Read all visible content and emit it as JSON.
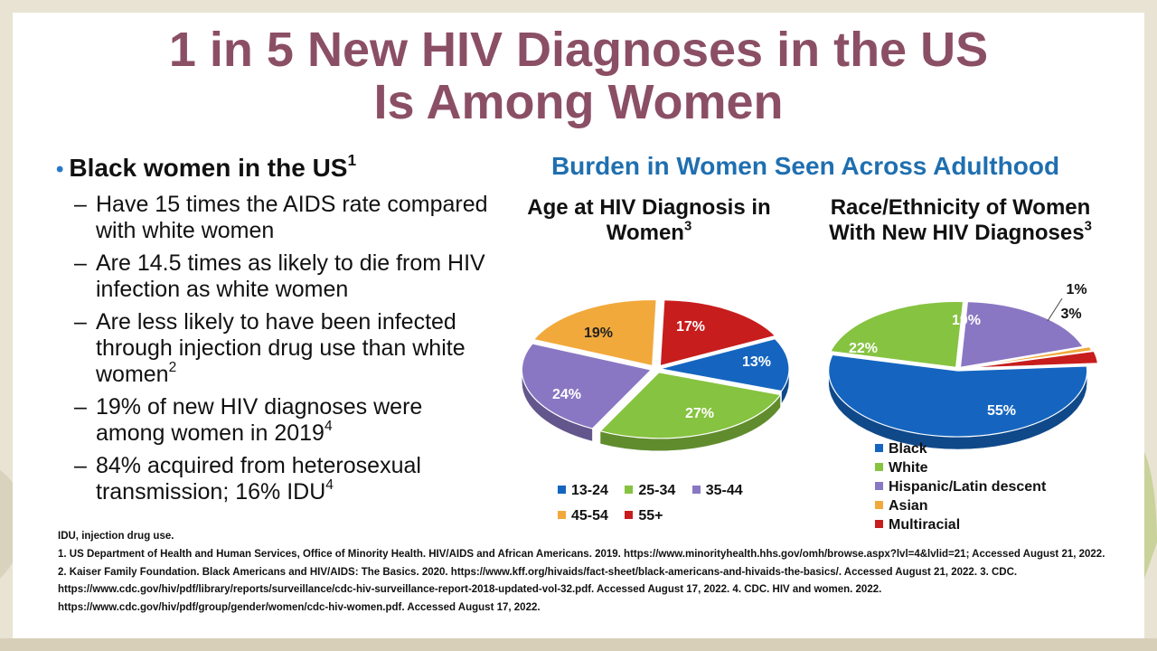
{
  "colors": {
    "title": "#8b4f65",
    "accent": "#1f6fb0",
    "bullet_dot": "#2878c8",
    "background": "#e9e3d4"
  },
  "title": {
    "line1": "1 in 5 New HIV Diagnoses in the US",
    "line2": "Is Among Women"
  },
  "bullets": {
    "main": {
      "text": "Black women in the US",
      "sup": "1"
    },
    "items": [
      {
        "text": "Have 15 times the AIDS rate compared with white women",
        "sup": ""
      },
      {
        "text": "Are 14.5 times as likely to die from HIV infection as white women",
        "sup": ""
      },
      {
        "text": "Are less likely to have been infected through injection drug use than white women",
        "sup": "2"
      },
      {
        "text": "19% of new HIV diagnoses were among women in 2019",
        "sup": "4"
      },
      {
        "text": "84% acquired from heterosexual transmission; 16% IDU",
        "sup": "4"
      }
    ]
  },
  "section_title": "Burden in Women Seen Across Adulthood",
  "chart_data": [
    {
      "type": "pie",
      "title": "Age at HIV Diagnosis in Women",
      "title_sup": "3",
      "categories": [
        "13-24",
        "25-34",
        "35-44",
        "45-54",
        "55+"
      ],
      "values": [
        13,
        27,
        24,
        19,
        17
      ],
      "labels": [
        "13%",
        "27%",
        "24%",
        "19%",
        "17%"
      ],
      "colors": [
        "#1565c0",
        "#86c340",
        "#8a77c3",
        "#f2a93b",
        "#c81d1d"
      ],
      "legend": "bottom"
    },
    {
      "type": "pie",
      "title": "Race/Ethnicity of Women With New HIV Diagnoses",
      "title_sup": "3",
      "categories": [
        "Black",
        "White",
        "Hispanic/Latin descent",
        "Asian",
        "Multiracial"
      ],
      "values": [
        55,
        22,
        19,
        1,
        3
      ],
      "labels": [
        "55%",
        "22%",
        "19%",
        "1%",
        "3%"
      ],
      "colors": [
        "#1565c0",
        "#86c340",
        "#8a77c3",
        "#f2a93b",
        "#c81d1d"
      ],
      "legend": "bottom-right"
    }
  ],
  "footnotes": [
    "IDU, injection drug use.",
    "1. US Department of Health and Human Services, Office of Minority Health. HIV/AIDS and African Americans. 2019. https://www.minorityhealth.hhs.gov/omh/browse.aspx?lvl=4&lvlid=21;  Accessed  August 21, 2022.  2. Kaiser Family Foundation. Black Americans and HIV/AIDS: The Basics. 2020. https://www.kff.org/hivaids/fact-sheet/black-americans-and-hivaids-the-basics/.  Accessed  August 21, 2022.  3. CDC. https://www.cdc.gov/hiv/pdf/library/reports/surveillance/cdc-hiv-surveillance-report-2018-updated-vol-32.pdf.  Accessed August 17, 2022.  4. CDC. HIV and women. 2022. https://www.cdc.gov/hiv/pdf/group/gender/women/cdc-hiv-women.pdf.  Accessed August 17, 2022."
  ]
}
